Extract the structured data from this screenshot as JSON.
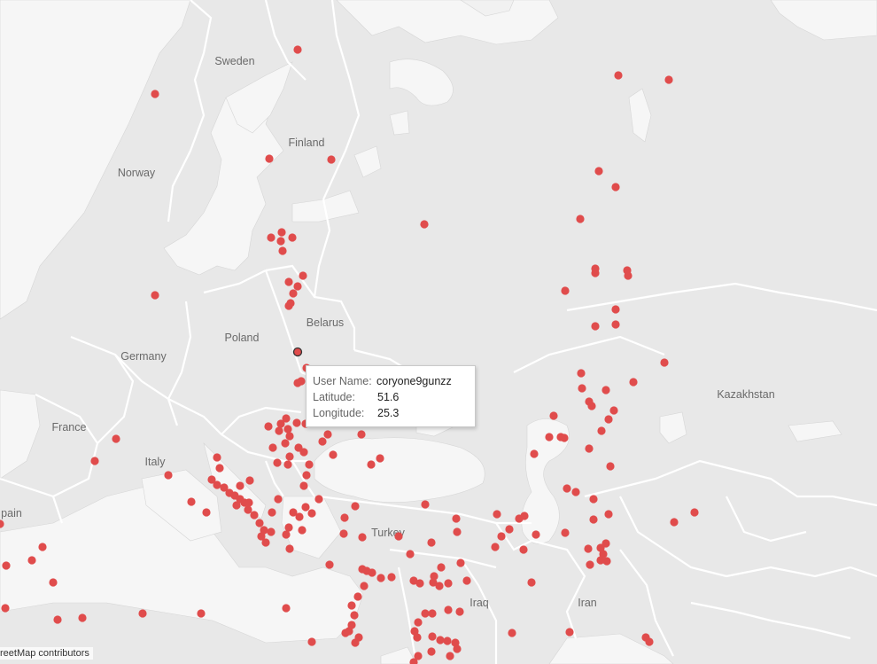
{
  "labels": {
    "sweden": "Sweden",
    "finland": "Finland",
    "norway": "Norway",
    "belarus": "Belarus",
    "poland": "Poland",
    "germany": "Germany",
    "france": "France",
    "italy": "Italy",
    "spain": "pain",
    "turkey": "Turkey",
    "kazakhstan": "Kazakhstan",
    "iraq": "Iraq",
    "iran": "Iran"
  },
  "tooltip": {
    "user_label": "User Name:",
    "user_value": "coryone9gunzz",
    "lat_label": "Latitude:",
    "lat_value": "51.6",
    "lon_label": "Longitude:",
    "lon_value": "25.3"
  },
  "attribution": "reetMap contributors",
  "colors": {
    "marker": "#e04c4c",
    "land": "#e8e8e8",
    "water": "#f5f5f5",
    "border": "#ffffff"
  }
}
